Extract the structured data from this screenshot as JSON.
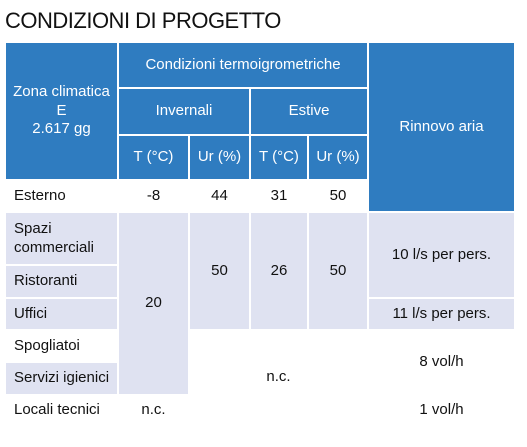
{
  "title": "CONDIZIONI DI PROGETTO",
  "table": {
    "header": {
      "zone": [
        "Zona climatica",
        "E",
        "2.617 gg"
      ],
      "group": "Condizioni termoigrometriche",
      "winter": "Invernali",
      "summer": "Estive",
      "air": "Rinnovo aria",
      "units": [
        "T (°C)",
        "Ur (%)",
        "T (°C)",
        "Ur (%)"
      ]
    },
    "rows": [
      "Esterno",
      "Spazi commerciali",
      "Ristoranti",
      "Uffici",
      "Spogliatoi",
      "Servizi igienici",
      "Locali tecnici"
    ],
    "outdoor": [
      -8,
      44,
      31,
      50
    ],
    "indoor": {
      "winter_t": 20,
      "winter_ur": 50,
      "summer_t": 26,
      "summer_ur": 50
    },
    "air": [
      "10 l/s per pers.",
      "11 l/s per pers.",
      "8 vol/h",
      "1 vol/h"
    ],
    "not_classified": [
      "n.c.",
      "n.c."
    ]
  }
}
